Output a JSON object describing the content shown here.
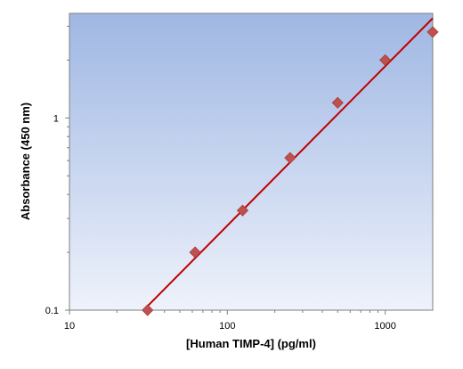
{
  "chart_data": {
    "type": "scatter",
    "title": "",
    "xlabel": "[Human TIMP-4] (pg/ml)",
    "ylabel": "Absorbance (450 nm)",
    "x_scale": "log",
    "y_scale": "log",
    "xlim": [
      10,
      2000
    ],
    "ylim": [
      0.1,
      3.5
    ],
    "x_ticks": [
      10,
      100,
      1000
    ],
    "x_tick_labels": [
      "10",
      "100",
      "1000"
    ],
    "y_ticks": [
      0.1,
      1
    ],
    "y_tick_labels": [
      "0.1",
      "1"
    ],
    "grid": false,
    "legend": "none",
    "series": [
      {
        "marker": "diamond",
        "x": [
          31.25,
          62.5,
          125,
          250,
          500,
          1000,
          2000
        ],
        "y": [
          0.1,
          0.2,
          0.33,
          0.62,
          1.2,
          2.0,
          2.8
        ]
      }
    ],
    "fit_line": {
      "x": [
        31.25,
        2000
      ],
      "y": [
        0.105,
        3.3
      ]
    },
    "colors": {
      "marker": "#c0504d",
      "line": "#c00000",
      "plot_bg_top": "#9fb7e3",
      "plot_bg_bottom": "#eef2fb"
    }
  }
}
